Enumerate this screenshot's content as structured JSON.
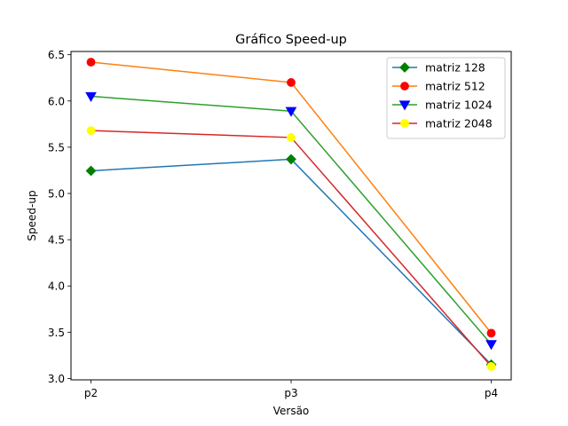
{
  "chart_data": {
    "type": "line",
    "title": "Gráfico Speed-up",
    "xlabel": "Versão",
    "ylabel": "Speed-up",
    "categories": [
      "p2",
      "p3",
      "p4"
    ],
    "ylim": [
      2.985,
      6.535
    ],
    "yticks": [
      3.0,
      3.5,
      4.0,
      4.5,
      5.0,
      5.5,
      6.0,
      6.5
    ],
    "ytick_labels": [
      "3.0",
      "3.5",
      "4.0",
      "4.5",
      "5.0",
      "5.5",
      "6.0",
      "6.5"
    ],
    "grid": false,
    "legend_position": "top-right",
    "series": [
      {
        "name": "matriz 128",
        "values": [
          5.245,
          5.37,
          3.15
        ],
        "line_color": "#1f77b4",
        "marker": "diamond",
        "marker_color": "#008000"
      },
      {
        "name": "matriz 512",
        "values": [
          6.42,
          6.2,
          3.49
        ],
        "line_color": "#ff7f0e",
        "marker": "circle",
        "marker_color": "#ff0000"
      },
      {
        "name": "matriz 1024",
        "values": [
          6.05,
          5.89,
          3.37
        ],
        "line_color": "#2ca02c",
        "marker": "triangle-down",
        "marker_color": "#0000ff"
      },
      {
        "name": "matriz 2048",
        "values": [
          5.68,
          5.605,
          3.13
        ],
        "line_color": "#d62728",
        "marker": "circle",
        "marker_color": "#ffff00"
      }
    ]
  }
}
